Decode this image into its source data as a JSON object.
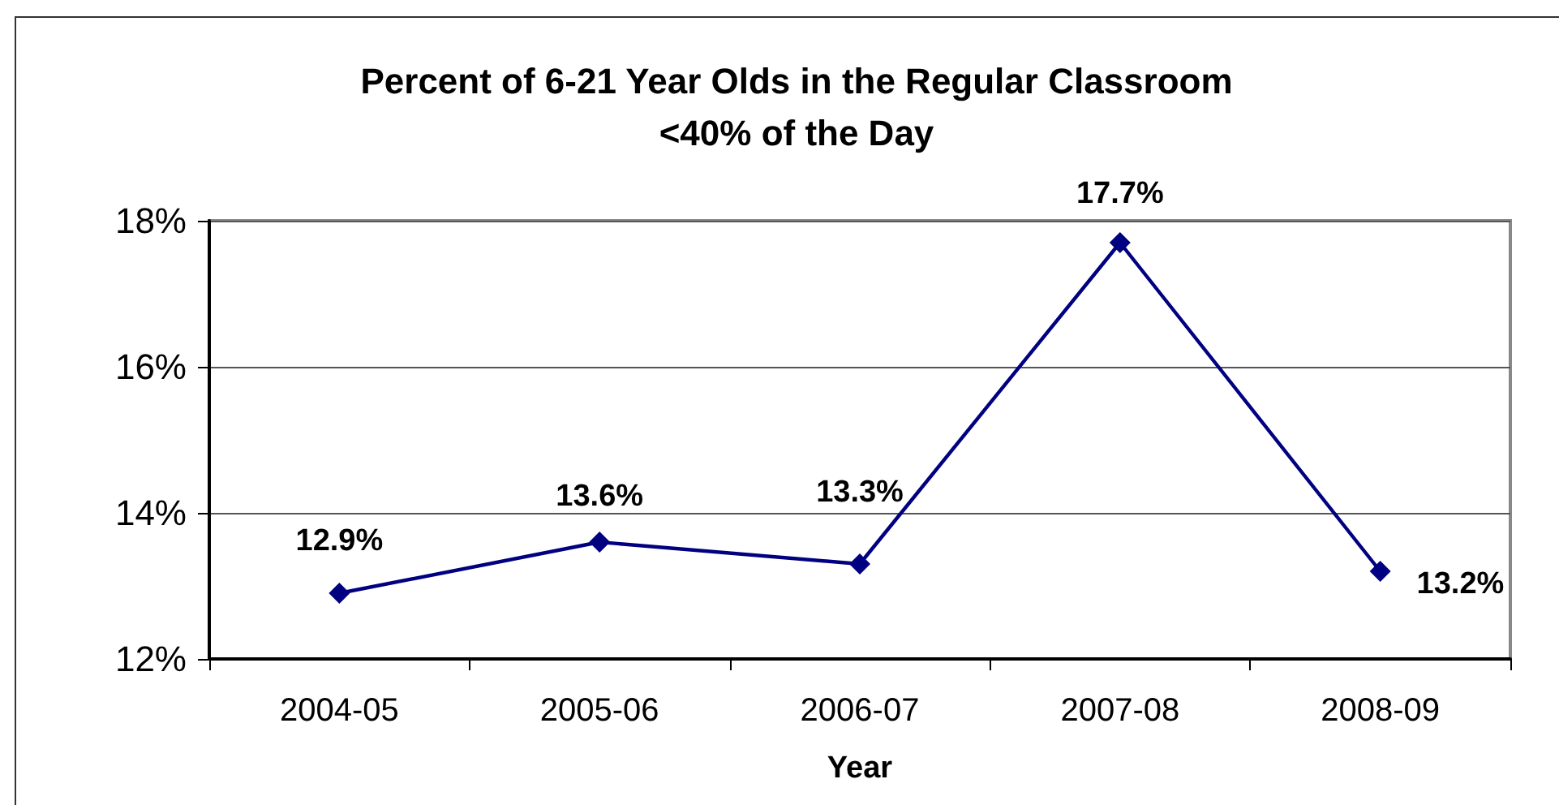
{
  "chart_data": {
    "type": "line",
    "title": "Percent of 6-21 Year Olds in the Regular Classroom\n<40% of the Day",
    "xlabel": "Year",
    "categories": [
      "2004-05",
      "2005-06",
      "2006-07",
      "2007-08",
      "2008-09"
    ],
    "series": [
      {
        "color": "#000080",
        "values": [
          12.9,
          13.6,
          13.3,
          17.7,
          13.2
        ],
        "value_labels": [
          "12.9%",
          "13.6%",
          "13.3%",
          "17.7%",
          "13.2%"
        ]
      }
    ],
    "ylim": [
      12,
      18
    ],
    "yticks": [
      {
        "value": 12,
        "label": "12%"
      },
      {
        "value": 14,
        "label": "14%"
      },
      {
        "value": 16,
        "label": "16%"
      },
      {
        "value": 18,
        "label": "18%"
      }
    ],
    "grid": "y",
    "marker": "diamond",
    "line_style": "solid"
  }
}
